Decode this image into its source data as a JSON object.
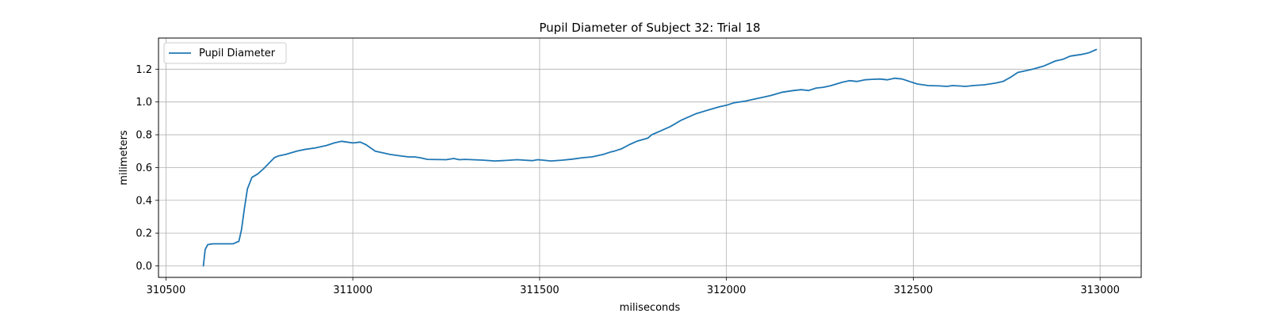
{
  "chart_data": {
    "type": "line",
    "title": "Pupil Diameter of Subject 32: Trial 18",
    "xlabel": "miliseconds",
    "ylabel": "milimeters",
    "xlim": [
      310480,
      313110
    ],
    "ylim": [
      -0.07,
      1.39
    ],
    "xticks": [
      310500,
      311000,
      311500,
      312000,
      312500,
      313000
    ],
    "yticks": [
      0.0,
      0.2,
      0.4,
      0.6,
      0.8,
      1.0,
      1.2
    ],
    "ytick_labels": [
      "0.0",
      "0.2",
      "0.4",
      "0.6",
      "0.8",
      "1.0",
      "1.2"
    ],
    "grid": true,
    "legend": {
      "position": "upper left",
      "entries": [
        "Pupil Diameter"
      ]
    },
    "colors": {
      "line": "#1f77b4",
      "grid": "#b0b0b0",
      "spine": "#000000"
    },
    "series": [
      {
        "name": "Pupil Diameter",
        "x": [
          310600,
          310605,
          310612,
          310625,
          310650,
          310680,
          310695,
          310702,
          310710,
          310718,
          310730,
          310745,
          310760,
          310790,
          310800,
          310820,
          310850,
          310870,
          310900,
          310930,
          310950,
          310970,
          310985,
          311000,
          311020,
          311035,
          311060,
          311100,
          311130,
          311150,
          311165,
          311180,
          311200,
          311250,
          311270,
          311285,
          311300,
          311320,
          311350,
          311380,
          311400,
          311420,
          311440,
          311460,
          311480,
          311495,
          311510,
          311530,
          311560,
          311590,
          311615,
          311640,
          311670,
          311690,
          311700,
          311720,
          311740,
          311760,
          311790,
          311800,
          311820,
          311850,
          311880,
          311900,
          311920,
          311950,
          311980,
          312000,
          312020,
          312050,
          312080,
          312100,
          312120,
          312150,
          312180,
          312200,
          312220,
          312240,
          312260,
          312280,
          312310,
          312330,
          312350,
          312370,
          312390,
          312410,
          312430,
          312450,
          312470,
          312490,
          312510,
          312540,
          312570,
          312590,
          312605,
          312620,
          312640,
          312660,
          312690,
          312720,
          312740,
          312760,
          312780,
          312800,
          312820,
          312850,
          312880,
          312900,
          312920,
          312950,
          312970,
          312990
        ],
        "y": [
          0.0,
          0.1,
          0.13,
          0.135,
          0.135,
          0.135,
          0.15,
          0.22,
          0.35,
          0.47,
          0.54,
          0.56,
          0.59,
          0.66,
          0.67,
          0.68,
          0.7,
          0.71,
          0.72,
          0.735,
          0.75,
          0.76,
          0.755,
          0.75,
          0.755,
          0.74,
          0.7,
          0.68,
          0.67,
          0.665,
          0.665,
          0.66,
          0.65,
          0.648,
          0.655,
          0.648,
          0.65,
          0.648,
          0.645,
          0.64,
          0.642,
          0.645,
          0.648,
          0.645,
          0.642,
          0.648,
          0.645,
          0.64,
          0.645,
          0.652,
          0.66,
          0.665,
          0.68,
          0.695,
          0.7,
          0.715,
          0.74,
          0.76,
          0.78,
          0.8,
          0.82,
          0.85,
          0.89,
          0.91,
          0.93,
          0.95,
          0.97,
          0.98,
          0.995,
          1.005,
          1.02,
          1.03,
          1.04,
          1.06,
          1.07,
          1.075,
          1.07,
          1.085,
          1.09,
          1.1,
          1.12,
          1.13,
          1.125,
          1.135,
          1.138,
          1.14,
          1.135,
          1.145,
          1.14,
          1.125,
          1.11,
          1.1,
          1.098,
          1.095,
          1.1,
          1.098,
          1.095,
          1.1,
          1.105,
          1.115,
          1.125,
          1.15,
          1.18,
          1.19,
          1.2,
          1.22,
          1.25,
          1.26,
          1.28,
          1.29,
          1.3,
          1.32
        ]
      }
    ]
  }
}
